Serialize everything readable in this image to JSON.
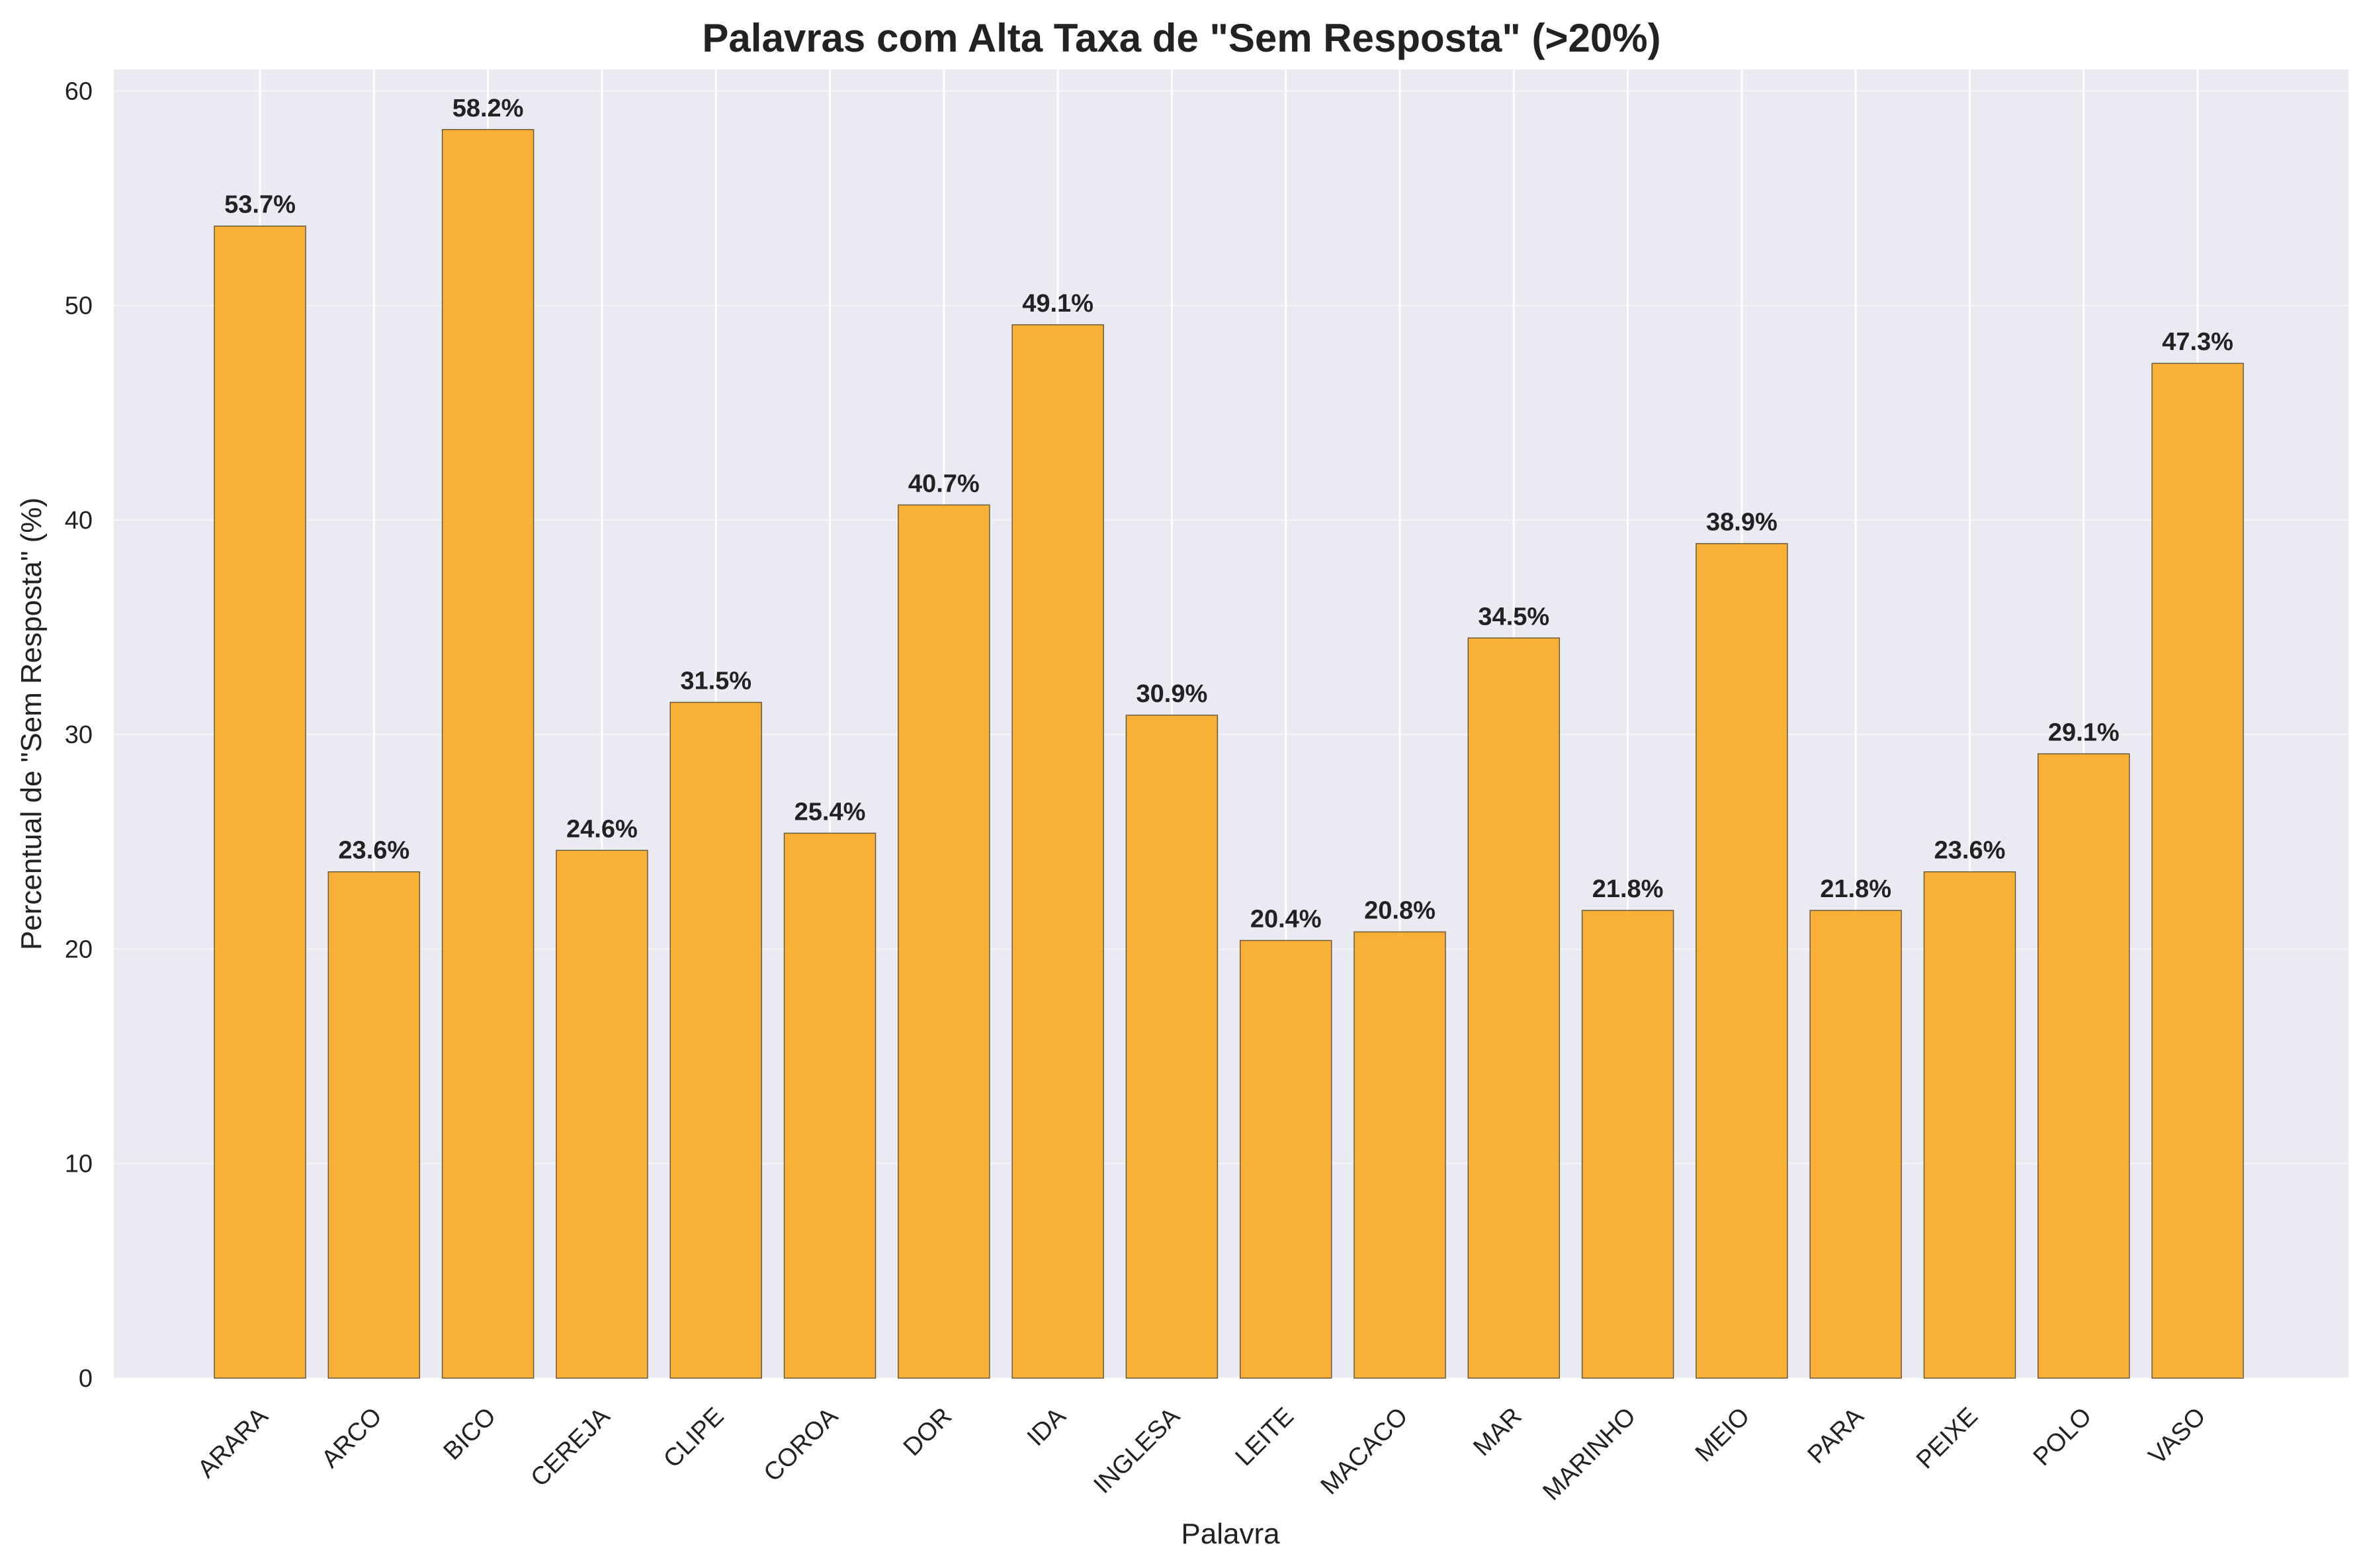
{
  "chart_data": {
    "type": "bar",
    "title": "Palavras com Alta Taxa de \"Sem Resposta\" (>20%)",
    "xlabel": "Palavra",
    "ylabel": "Percentual de \"Sem Resposta\" (%)",
    "ylim": [
      0,
      61
    ],
    "yticks": [
      0,
      10,
      20,
      30,
      40,
      50,
      60
    ],
    "grid": true,
    "legend": "none",
    "categories": [
      "ARARA",
      "ARCO",
      "BICO",
      "CEREJA",
      "CLIPE",
      "COROA",
      "DOR",
      "IDA",
      "INGLESA",
      "LEITE",
      "MACACO",
      "MAR",
      "MARINHO",
      "MEIO",
      "PARA",
      "PEIXE",
      "POLO",
      "VASO"
    ],
    "values": [
      53.7,
      23.6,
      58.2,
      24.6,
      31.5,
      25.4,
      40.7,
      49.1,
      30.9,
      20.4,
      20.8,
      34.5,
      21.8,
      38.9,
      21.8,
      23.6,
      29.1,
      47.3
    ],
    "data_labels": [
      "53.7%",
      "23.6%",
      "58.2%",
      "24.6%",
      "31.5%",
      "25.4%",
      "40.7%",
      "49.1%",
      "30.9%",
      "20.4%",
      "20.8%",
      "34.5%",
      "21.8%",
      "38.9%",
      "21.8%",
      "23.6%",
      "29.1%",
      "47.3%"
    ]
  },
  "colors": {
    "bar_fill": "#F9AE2B",
    "bar_edge": "#6b5a3a",
    "plot_background": "#EAEAF2",
    "grid": "#ffffff",
    "text": "#222222"
  }
}
